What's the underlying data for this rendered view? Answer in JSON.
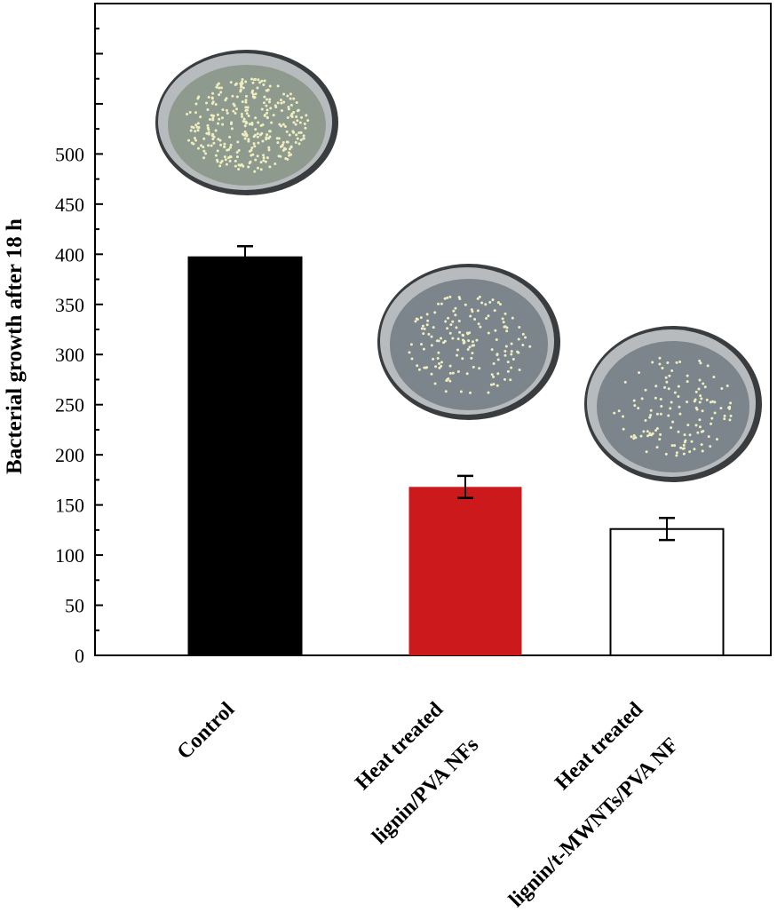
{
  "chart_data": {
    "type": "bar",
    "title": "",
    "xlabel": "",
    "ylabel": "Bacterial growth after 18 h",
    "ylim": [
      0,
      650
    ],
    "yticks": [
      0,
      50,
      100,
      150,
      200,
      250,
      300,
      350,
      400,
      450,
      500
    ],
    "grid": false,
    "categories": [
      [
        "Control"
      ],
      [
        "Heat treated",
        "lignin/PVA NFs"
      ],
      [
        "Heat treated",
        "lignin/t-MWNTs/PVA NF"
      ]
    ],
    "values": [
      397,
      168,
      126
    ],
    "errors": [
      11,
      11,
      11
    ],
    "colors": [
      "#000000",
      "#cc1a1c",
      "#ffffff"
    ],
    "annotations": [
      "petri-dish-photo",
      "petri-dish-photo",
      "petri-dish-photo"
    ]
  }
}
